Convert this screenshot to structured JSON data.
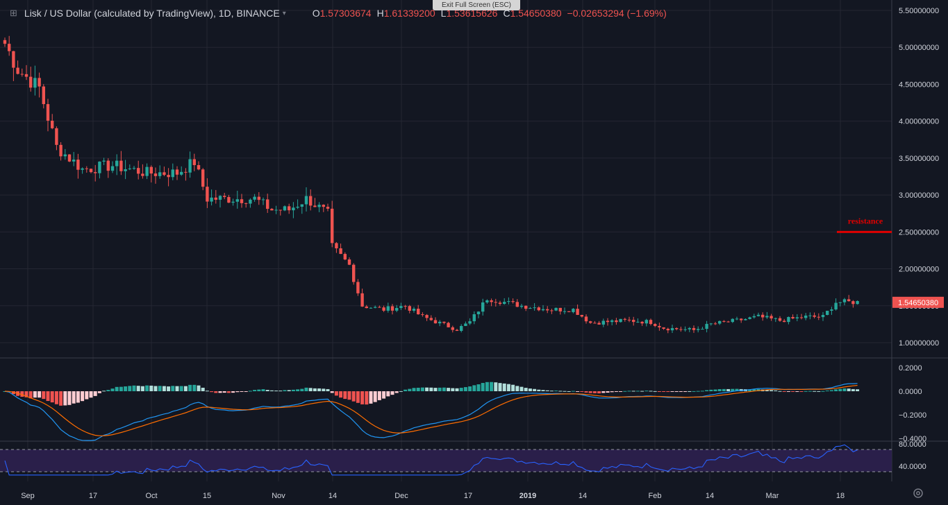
{
  "header": {
    "symbol": "Lisk / US Dollar (calculated by TradingView), 1D, BINANCE",
    "open_label": "O",
    "open": "1.57303674",
    "high_label": "H",
    "high": "1.61339200",
    "low_label": "L",
    "low": "1.53615626",
    "close_label": "C",
    "close": "1.54650380",
    "change": "−0.02653294 (−1.69%)"
  },
  "overlay": {
    "exit_fullscreen": "Exit Full Screen (ESC)"
  },
  "icons": [
    "crosshair-icon",
    "chevron-down-icon",
    "gear-icon"
  ],
  "colors": {
    "background": "#131722",
    "up": "#26a69a",
    "down": "#ef5350",
    "macd_line": "#2196f3",
    "signal_line": "#ff6d00",
    "rsi_line": "#2962ff",
    "rsi_band": "#2a1f4a",
    "resistance": "#e00000"
  },
  "chart_data": [
    {
      "type": "candlestick",
      "title": "Lisk / US Dollar (calculated by TradingView), 1D, BINANCE",
      "ylim": [
        0.9,
        5.55
      ],
      "y_ticks": [
        "5.50000000",
        "5.00000000",
        "4.50000000",
        "4.00000000",
        "3.50000000",
        "3.00000000",
        "2.50000000",
        "2.00000000",
        "1.50000000",
        "1.00000000"
      ],
      "x_tick_labels": [
        "Sep",
        "17",
        "Oct",
        "15",
        "Nov",
        "14",
        "Dec",
        "17",
        "2019",
        "14",
        "Feb",
        "14",
        "Mar",
        "18"
      ],
      "last_price_label": "1.54650380",
      "annotation": {
        "text": "resistance",
        "price": 2.5
      },
      "anchors": [
        [
          0,
          5.05
        ],
        [
          3,
          4.7
        ],
        [
          8,
          4.45
        ],
        [
          12,
          3.65
        ],
        [
          18,
          3.35
        ],
        [
          25,
          3.4
        ],
        [
          33,
          3.3
        ],
        [
          40,
          3.3
        ],
        [
          44,
          3.45
        ],
        [
          47,
          2.95
        ],
        [
          55,
          2.95
        ],
        [
          58,
          2.95
        ],
        [
          62,
          2.8
        ],
        [
          66,
          2.8
        ],
        [
          70,
          2.95
        ],
        [
          75,
          2.75
        ],
        [
          76,
          2.3
        ],
        [
          80,
          2.05
        ],
        [
          83,
          1.5
        ],
        [
          88,
          1.45
        ],
        [
          93,
          1.5
        ],
        [
          97,
          1.35
        ],
        [
          105,
          1.18
        ],
        [
          108,
          1.28
        ],
        [
          112,
          1.6
        ],
        [
          120,
          1.5
        ],
        [
          127,
          1.45
        ],
        [
          132,
          1.45
        ],
        [
          136,
          1.27
        ],
        [
          145,
          1.3
        ],
        [
          150,
          1.28
        ],
        [
          153,
          1.2
        ],
        [
          160,
          1.17
        ],
        [
          164,
          1.25
        ],
        [
          170,
          1.3
        ],
        [
          175,
          1.35
        ],
        [
          180,
          1.3
        ],
        [
          186,
          1.35
        ],
        [
          190,
          1.35
        ],
        [
          193,
          1.55
        ],
        [
          198,
          1.55
        ]
      ]
    },
    {
      "type": "macd",
      "ylim": [
        -0.42,
        0.24
      ],
      "y_ticks": [
        "0.2000",
        "0.0000",
        "−0.2000",
        "−0.4000"
      ]
    },
    {
      "type": "rsi",
      "ylim": [
        30,
        84
      ],
      "y_ticks": [
        "80.0000",
        "40.0000"
      ],
      "bands": [
        70,
        30
      ]
    }
  ]
}
